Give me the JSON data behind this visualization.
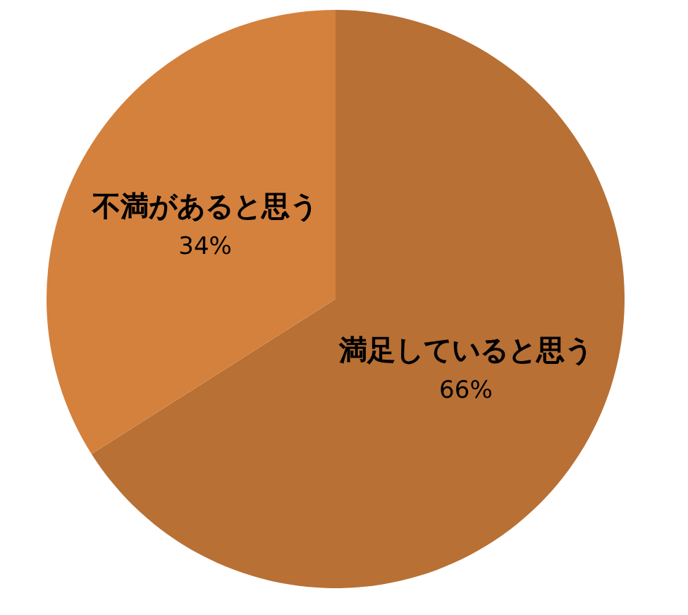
{
  "chart_data": {
    "type": "pie",
    "categories": [
      "満足していると思う",
      "不満があると思う"
    ],
    "values": [
      66,
      34
    ],
    "colors": [
      "#b87035",
      "#d4813d"
    ],
    "value_labels": [
      "66%",
      "34%"
    ]
  }
}
